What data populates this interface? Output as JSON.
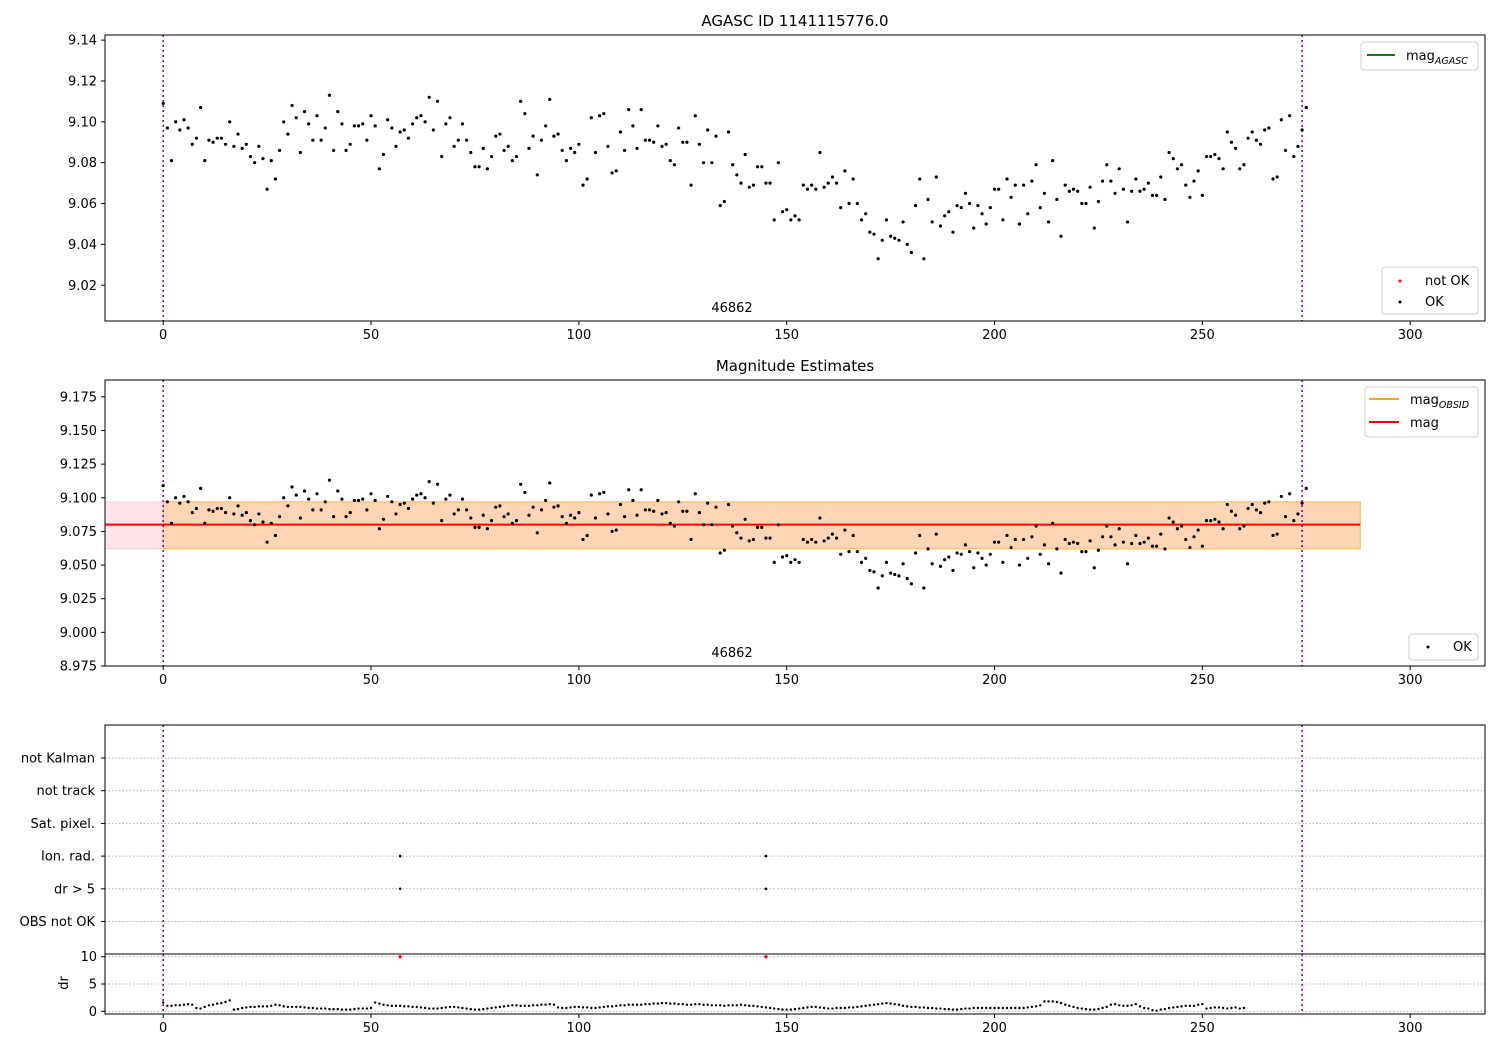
{
  "chart_data": [
    {
      "type": "scatter",
      "title": "AGASC ID 1141115776.0",
      "xlim": [
        -14,
        318
      ],
      "ylim": [
        9.0025,
        9.1425
      ],
      "xticks": [
        0,
        50,
        100,
        150,
        200,
        250,
        300
      ],
      "yticks": [
        9.02,
        9.04,
        9.06,
        9.08,
        9.1,
        9.12,
        9.14
      ],
      "vlines": [
        0,
        274
      ],
      "obsid_label": {
        "text": "46862",
        "x": 137
      },
      "legend_lines": [
        {
          "name": "mag",
          "sub": "AGASC",
          "color": "#008000"
        }
      ],
      "legend_markers": [
        {
          "name": "not OK",
          "color": "#ff0000"
        },
        {
          "name": "OK",
          "color": "#000000"
        }
      ],
      "series": [
        {
          "name": "OK",
          "color": "#000000",
          "points": "mag"
        }
      ]
    },
    {
      "type": "scatter",
      "title": "Magnitude Estimates",
      "xlim": [
        -14,
        318
      ],
      "ylim": [
        8.975,
        9.1875
      ],
      "xticks": [
        0,
        50,
        100,
        150,
        200,
        250,
        300
      ],
      "yticks": [
        8.975,
        9.0,
        9.025,
        9.05,
        9.075,
        9.1,
        9.125,
        9.15,
        9.175
      ],
      "vlines": [
        0,
        274
      ],
      "obsid_label": {
        "text": "46862",
        "x": 137
      },
      "bands": [
        {
          "x": [
            -14,
            288
          ],
          "y": [
            9.062,
            9.097
          ],
          "color": "#ffc0cb",
          "opacity": 0.45
        },
        {
          "x": [
            0,
            288
          ],
          "y": [
            9.062,
            9.097
          ],
          "color": "#ffa500",
          "opacity": 0.22
        }
      ],
      "hlines": [
        {
          "y": 9.08,
          "x": [
            -14,
            288
          ],
          "color": "#ff0000"
        }
      ],
      "legend_lines": [
        {
          "name": "mag",
          "sub": "OBSID",
          "color": "#ffa500"
        },
        {
          "name": "mag",
          "sub": "",
          "color": "#ff0000"
        }
      ],
      "legend_markers": [
        {
          "name": "OK",
          "color": "#000000"
        }
      ],
      "series": [
        {
          "name": "OK",
          "color": "#000000",
          "points": "mag"
        }
      ]
    },
    {
      "type": "scatter",
      "xlim": [
        -14,
        318
      ],
      "categories": [
        "not Kalman",
        "not track",
        "Sat. pixel.",
        "Ion. rad.",
        "dr > 5",
        "OBS not OK"
      ],
      "flag_points": {
        "Ion. rad.": [
          57,
          145
        ],
        "dr > 5": [
          57,
          145
        ]
      },
      "vlines": [
        0,
        274
      ]
    },
    {
      "type": "scatter",
      "xlim": [
        -14,
        318
      ],
      "ylim": [
        -0.5,
        10.5
      ],
      "ylabel": "dr",
      "xticks": [
        0,
        50,
        100,
        150,
        200,
        250,
        300
      ],
      "yticks": [
        0,
        5,
        10
      ],
      "vlines": [
        0,
        274
      ],
      "outliers": [
        {
          "x": 57,
          "y": 10
        },
        {
          "x": 145,
          "y": 10
        }
      ],
      "series": [
        {
          "name": "dr",
          "color": "#000000",
          "points": "dr"
        }
      ]
    }
  ],
  "measurements": {
    "x_start": 0,
    "x_step": 1,
    "mag": [
      9.109,
      9.097,
      9.081,
      9.1,
      9.096,
      9.101,
      9.097,
      9.089,
      9.092,
      9.107,
      9.081,
      9.091,
      9.09,
      9.092,
      9.092,
      9.089,
      9.1,
      9.088,
      9.094,
      9.087,
      9.089,
      9.083,
      9.08,
      9.088,
      9.082,
      9.067,
      9.081,
      9.072,
      9.086,
      9.1,
      9.094,
      9.108,
      9.102,
      9.085,
      9.105,
      9.099,
      9.091,
      9.103,
      9.091,
      9.097,
      9.113,
      9.086,
      9.105,
      9.099,
      9.086,
      9.089,
      9.098,
      9.098,
      9.099,
      9.091,
      9.103,
      9.098,
      9.077,
      9.084,
      9.101,
      9.097,
      9.088,
      9.095,
      9.096,
      9.092,
      9.099,
      9.102,
      9.103,
      9.1,
      9.112,
      9.096,
      9.11,
      9.083,
      9.099,
      9.102,
      9.088,
      9.091,
      9.099,
      9.091,
      9.085,
      9.078,
      9.078,
      9.087,
      9.077,
      9.083,
      9.093,
      9.094,
      9.086,
      9.088,
      9.081,
      9.083,
      9.11,
      9.104,
      9.087,
      9.093,
      9.074,
      9.091,
      9.098,
      9.111,
      9.093,
      9.094,
      9.086,
      9.081,
      9.087,
      9.085,
      9.089,
      9.069,
      9.072,
      9.102,
      9.085,
      9.103,
      9.104,
      9.088,
      9.075,
      9.076,
      9.095,
      9.086,
      9.106,
      9.098,
      9.087,
      9.106,
      9.091,
      9.091,
      9.09,
      9.098,
      9.088,
      9.089,
      9.081,
      9.079,
      9.097,
      9.09,
      9.09,
      9.069,
      9.103,
      9.089,
      9.08,
      9.096,
      9.08,
      9.093,
      9.059,
      9.061,
      9.095,
      9.079,
      9.074,
      9.07,
      9.084,
      9.068,
      9.069,
      9.078,
      9.078,
      9.07,
      9.07,
      9.052,
      9.08,
      9.056,
      9.057,
      9.052,
      9.054,
      9.052,
      9.069,
      9.067,
      9.069,
      9.067,
      9.085,
      9.068,
      9.07,
      9.073,
      9.07,
      9.058,
      9.076,
      9.06,
      9.072,
      9.06,
      9.052,
      9.055,
      9.046,
      9.045,
      9.033,
      9.042,
      9.052,
      9.044,
      9.043,
      9.042,
      9.051,
      9.04,
      9.036,
      9.059,
      9.072,
      9.033,
      9.062,
      9.051,
      9.073,
      9.049,
      9.054,
      9.056,
      9.046,
      9.059,
      9.058,
      9.065,
      9.06,
      9.048,
      9.059,
      9.055,
      9.05,
      9.058,
      9.067,
      9.067,
      9.052,
      9.072,
      9.063,
      9.069,
      9.05,
      9.069,
      9.055,
      9.071,
      9.079,
      9.058,
      9.065,
      9.051,
      9.081,
      9.062,
      9.044,
      9.069,
      9.066,
      9.067,
      9.066,
      9.06,
      9.06,
      9.068,
      9.048,
      9.061,
      9.071,
      9.079,
      9.071,
      9.065,
      9.077,
      9.067,
      9.051,
      9.066,
      9.072,
      9.066,
      9.067,
      9.07,
      9.064,
      9.064,
      9.073,
      9.062,
      9.085,
      9.082,
      9.077,
      9.079,
      9.069,
      9.063,
      9.071,
      9.076,
      9.064,
      9.083,
      9.083,
      9.084,
      9.082,
      9.077,
      9.095,
      9.09,
      9.087,
      9.077,
      9.079,
      9.092,
      9.095,
      9.091,
      9.089,
      9.096,
      9.097,
      9.072,
      9.073,
      9.101,
      9.086,
      9.103,
      9.083,
      9.088,
      9.096,
      9.107
    ],
    "dr": [
      1.6,
      1.0,
      1.0,
      1.1,
      1.1,
      1.2,
      1.3,
      1.2,
      0.6,
      0.5,
      0.8,
      1.1,
      1.2,
      1.4,
      1.5,
      1.7,
      2.0,
      0.3,
      0.4,
      0.6,
      0.7,
      0.8,
      0.8,
      0.9,
      0.9,
      0.9,
      1.0,
      1.2,
      1.1,
      0.9,
      0.8,
      0.8,
      0.8,
      0.8,
      0.7,
      0.6,
      0.6,
      0.5,
      0.5,
      0.5,
      0.4,
      0.4,
      0.4,
      0.3,
      0.3,
      0.3,
      0.4,
      0.5,
      0.5,
      0.5,
      0.6,
      1.6,
      1.4,
      1.2,
      1.1,
      1.0,
      1.0,
      1.0,
      0.9,
      0.9,
      0.8,
      0.8,
      0.7,
      0.6,
      0.5,
      0.5,
      0.5,
      0.6,
      0.7,
      0.8,
      0.8,
      0.7,
      0.6,
      0.5,
      0.4,
      0.3,
      0.3,
      0.4,
      0.5,
      0.6,
      0.7,
      0.8,
      0.9,
      1.0,
      1.1,
      1.1,
      1.0,
      1.0,
      1.0,
      1.1,
      1.1,
      1.2,
      1.2,
      1.3,
      1.2,
      0.7,
      0.6,
      0.6,
      0.7,
      0.8,
      0.8,
      0.7,
      0.7,
      0.6,
      0.6,
      0.7,
      0.8,
      0.9,
      0.9,
      1.0,
      1.1,
      1.1,
      1.2,
      1.2,
      1.2,
      1.2,
      1.3,
      1.3,
      1.4,
      1.4,
      1.5,
      1.5,
      1.4,
      1.4,
      1.3,
      1.3,
      1.2,
      1.2,
      1.3,
      1.3,
      1.2,
      1.2,
      1.1,
      1.1,
      1.1,
      1.0,
      1.1,
      1.1,
      1.1,
      1.2,
      1.1,
      1.0,
      1.0,
      0.9,
      0.8,
      0.7,
      0.6,
      0.5,
      0.4,
      0.3,
      0.3,
      0.3,
      0.4,
      0.5,
      0.6,
      0.7,
      0.8,
      0.8,
      0.7,
      0.6,
      0.5,
      0.5,
      0.6,
      0.6,
      0.6,
      0.7,
      0.7,
      0.8,
      0.9,
      1.0,
      1.1,
      1.2,
      1.3,
      1.4,
      1.5,
      1.4,
      1.3,
      1.2,
      1.0,
      0.9,
      0.8,
      0.8,
      0.7,
      0.7,
      0.6,
      0.6,
      0.5,
      0.5,
      0.4,
      0.4,
      0.3,
      0.3,
      0.4,
      0.5,
      0.5,
      0.6,
      0.6,
      0.6,
      0.6,
      0.6,
      0.6,
      0.6,
      0.6,
      0.6,
      0.6,
      0.6,
      0.6,
      0.6,
      0.7,
      0.8,
      0.9,
      1.1,
      1.8,
      1.8,
      1.8,
      1.7,
      1.5,
      1.2,
      1.0,
      0.8,
      0.6,
      0.5,
      0.4,
      0.3,
      0.3,
      0.4,
      0.6,
      0.8,
      1.2,
      1.3,
      1.1,
      1.0,
      1.0,
      1.1,
      1.3,
      0.9,
      0.6,
      0.5,
      0.2,
      0.1,
      0.3,
      0.4,
      0.6,
      0.7,
      0.8,
      0.9,
      1.0,
      1.0,
      1.0,
      1.2,
      1.3,
      0.5,
      0.6,
      0.7,
      0.7,
      0.6,
      0.5,
      0.6,
      0.7,
      0.5,
      0.6
    ]
  }
}
